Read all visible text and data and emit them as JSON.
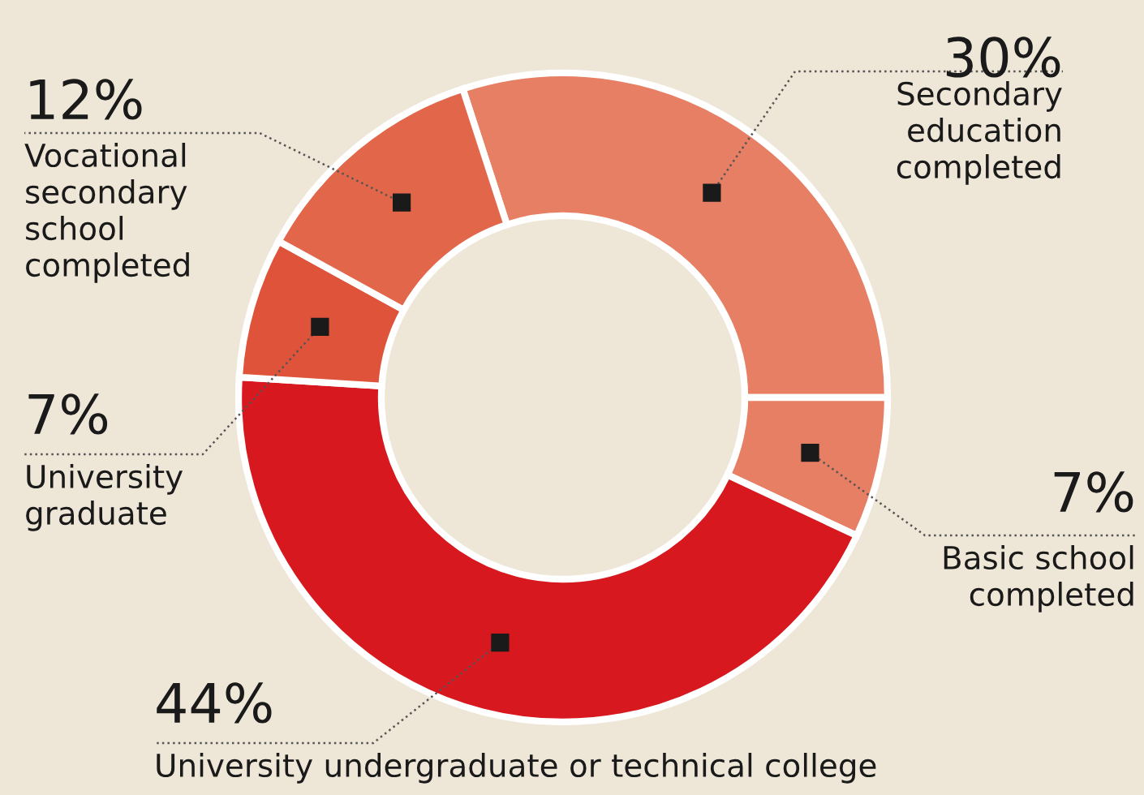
{
  "chart_data": {
    "type": "donut",
    "categories": [
      "Secondary\neducation\ncompleted",
      "Basic school\ncompleted",
      "University undergraduate or technical college",
      "University\ngraduate",
      "Vocational\nsecondary\nschool\ncompleted"
    ],
    "values": [
      30,
      7,
      44,
      7,
      12
    ],
    "value_labels": [
      "30%",
      "7%",
      "44%",
      "7%",
      "12%"
    ],
    "colors": [
      "#e77f64",
      "#e77f64",
      "#d7191f",
      "#e0533b",
      "#e2674a"
    ],
    "legend": false
  }
}
